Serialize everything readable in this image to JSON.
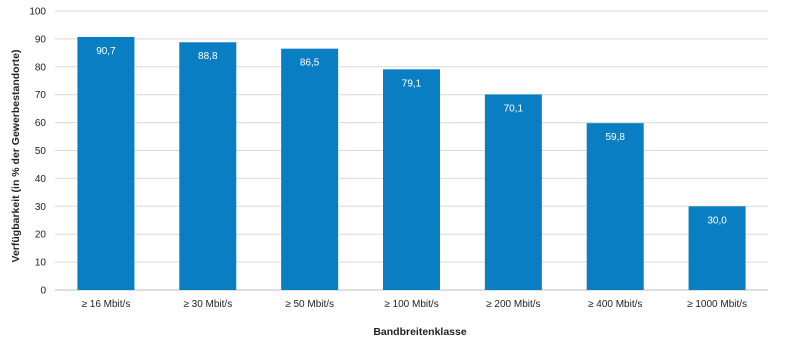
{
  "chart_data": {
    "type": "bar",
    "title": "",
    "xlabel": "Bandbreitenklasse",
    "ylabel": "Verfügbarkeit (in % der Gewerbestandorte)",
    "ylim": [
      0,
      100
    ],
    "yticks": [
      0,
      10,
      20,
      30,
      40,
      50,
      60,
      70,
      80,
      90,
      100
    ],
    "grid": true,
    "categories": [
      "≥ 16 Mbit/s",
      "≥ 30 Mbit/s",
      "≥ 50 Mbit/s",
      "≥ 100 Mbit/s",
      "≥ 200 Mbit/s",
      "≥ 400 Mbit/s",
      "≥ 1000 Mbit/s"
    ],
    "values": [
      90.7,
      88.8,
      86.5,
      79.1,
      70.1,
      59.8,
      30.0
    ],
    "value_labels": [
      "90,7",
      "88,8",
      "86,5",
      "79,1",
      "70,1",
      "59,8",
      "30,0"
    ],
    "colors": {
      "bar": "#0a7ec2",
      "grid": "#d9d9d9",
      "axis": "#bfbfbf"
    }
  }
}
